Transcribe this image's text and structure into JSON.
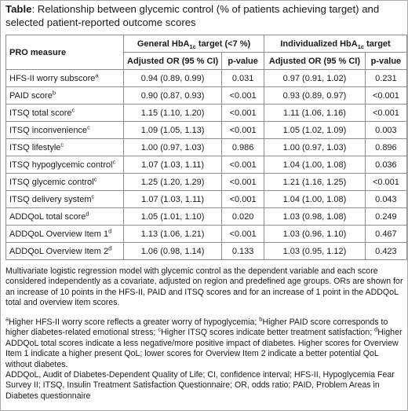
{
  "caption": {
    "label": "Table",
    "text": ": Relationship between glycemic control (% of patients achieving target) and selected patient-reported outcome scores"
  },
  "table": {
    "header": {
      "measure": "PRO measure",
      "general_prefix": "General HbA",
      "general_sub": "1c",
      "general_suffix": " target (<7 %)",
      "indiv_prefix": "Individualized HbA",
      "indiv_sub": "1c",
      "indiv_suffix": " target"
    },
    "subheader": [
      "Adjusted OR (95 % CI)",
      "p-value",
      "Adjusted OR (95 % CI)",
      "p-value"
    ],
    "rows": [
      {
        "measure": "HFS-II worry subscore",
        "sup": "a",
        "or1": "0.94 (0.89, 0.99)",
        "p1": "0.031",
        "or2": "0.97 (0.91, 1.02)",
        "p2": "0.231"
      },
      {
        "measure": "PAID score",
        "sup": "b",
        "or1": "0.90 (0.87, 0.93)",
        "p1": "<0.001",
        "or2": "0.93 (0.89, 0.97)",
        "p2": "<0.001"
      },
      {
        "measure": "ITSQ total score",
        "sup": "c",
        "or1": "1.15 (1.10, 1.20)",
        "p1": "<0.001",
        "or2": "1.11 (1.06, 1.16)",
        "p2": "<0.001"
      },
      {
        "measure": "ITSQ inconvenience",
        "sup": "c",
        "or1": "1.09 (1.05, 1.13)",
        "p1": "<0.001",
        "or2": "1.05 (1.02, 1.09)",
        "p2": "0.003"
      },
      {
        "measure": "ITSQ lifestyle",
        "sup": "c",
        "or1": "1.00 (0.97, 1.03)",
        "p1": "0.986",
        "or2": "1.00 (0.97, 1.03)",
        "p2": "0.896"
      },
      {
        "measure": "ITSQ hypoglycemic control",
        "sup": "c",
        "or1": "1.07 (1.03, 1.11)",
        "p1": "<0.001",
        "or2": "1.04 (1.00, 1.08)",
        "p2": "0.036"
      },
      {
        "measure": "ITSQ glycemic control",
        "sup": "c",
        "or1": "1.25 (1.20, 1.29)",
        "p1": "<0.001",
        "or2": "1.21 (1.16, 1.25)",
        "p2": "<0.001"
      },
      {
        "measure": "ITSQ delivery system",
        "sup": "c",
        "or1": "1.07 (1.03, 1.11)",
        "p1": "<0.001",
        "or2": "1.04 (1.00, 1.08)",
        "p2": "0.043"
      },
      {
        "measure": "ADDQoL total score",
        "sup": "d",
        "or1": "1.05 (1.01, 1.10)",
        "p1": "0.020",
        "or2": "1.03 (0.98, 1.08)",
        "p2": "0.249"
      },
      {
        "measure": "ADDQoL Overview Item 1",
        "sup": "d",
        "or1": "1.13 (1.06, 1.21)",
        "p1": "<0.001",
        "or2": "1.03 (0.96, 1.10)",
        "p2": "0.467"
      },
      {
        "measure": "ADDQoL Overview Item 2",
        "sup": "d",
        "or1": "1.06 (0.98, 1.14)",
        "p1": "0.133",
        "or2": "1.03 (0.95, 1.12)",
        "p2": "0.423"
      }
    ]
  },
  "notes": {
    "method": "Multivariate logistic regression model with glycemic control as the dependent variable and each score considered independently as a covariate, adjusted on region and predefined age groups. ORs are shown for an increase of 10 points in the HFS-II, PAID and ITSQ scores and for an increase of 1 point in the ADDQoL total and overview item scores.",
    "superscripts": [
      {
        "mark": "a",
        "text": "Higher HFS-II worry score reflects a greater worry of hypoglycemia; "
      },
      {
        "mark": "b",
        "text": "Higher PAID score corresponds to higher diabetes-related emotional stress; "
      },
      {
        "mark": "c",
        "text": "Higher ITSQ scores indicate better treatment satisfaction; "
      },
      {
        "mark": "d",
        "text": "Higher ADDQoL total scores indicate a less negative/more positive impact of diabetes. Higher scores for Overview Item 1 indicate a higher present QoL; lower scores for Overview Item 2 indicate a better potential QoL without diabetes."
      }
    ],
    "abbreviations": "ADDQoL, Audit of Diabetes-Dependent Quality of Life; CI, confidence interval; HFS-II, Hypoglycemia Fear Survey II; ITSQ, Insulin Treatment Satisfaction Questionnaire; OR, odds ratio; PAID, Problem Areas in Diabetes questionnaire"
  }
}
